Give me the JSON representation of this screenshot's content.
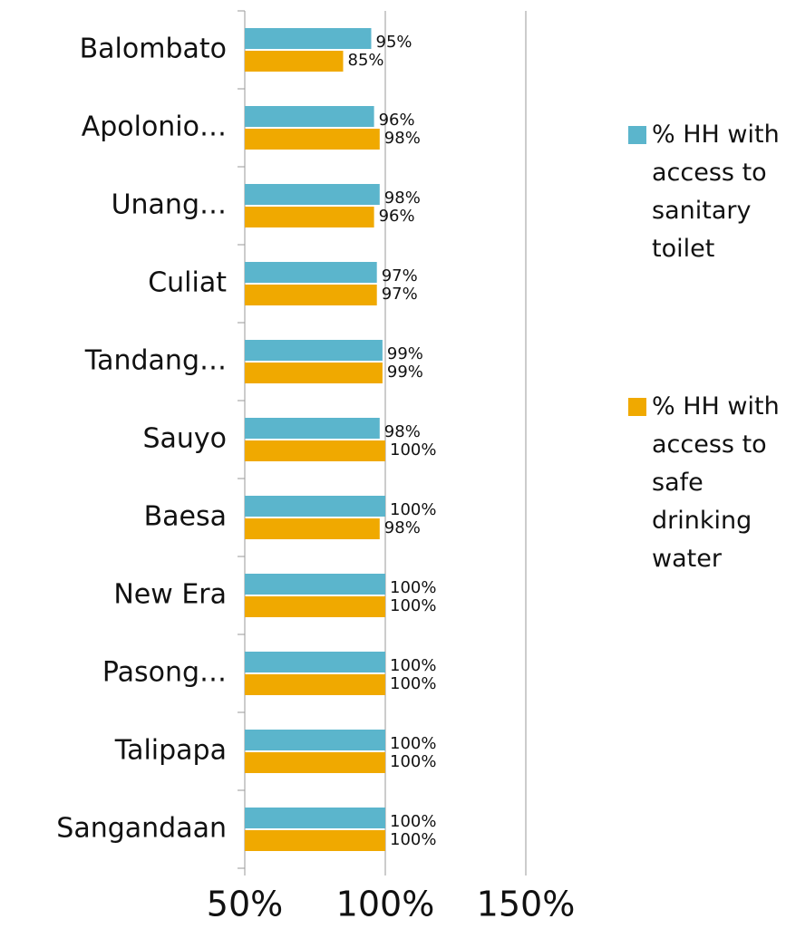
{
  "chart_data": {
    "type": "bar",
    "orientation": "horizontal",
    "categories": [
      "Balombato",
      "Apolonio…",
      "Unang…",
      "Culiat",
      "Tandang…",
      "Sauyo",
      "Baesa",
      "New Era",
      "Pasong…",
      "Talipapa",
      "Sangandaan"
    ],
    "series": [
      {
        "name": "% HH with access to sanitary toilet",
        "color": "#5bb5cc",
        "values": [
          95,
          96,
          98,
          97,
          99,
          98,
          100,
          100,
          100,
          100,
          100
        ],
        "value_labels": [
          "95%",
          "96%",
          "98%",
          "97%",
          "99%",
          "98%",
          "100%",
          "100%",
          "100%",
          "100%",
          "100%"
        ]
      },
      {
        "name": "% HH with access to safe drinking water",
        "color": "#f0a900",
        "values": [
          85,
          98,
          96,
          97,
          99,
          100,
          98,
          100,
          100,
          100,
          100
        ],
        "value_labels": [
          "85%",
          "98%",
          "96%",
          "97%",
          "99%",
          "100%",
          "98%",
          "100%",
          "100%",
          "100%",
          "100%"
        ]
      }
    ],
    "xlim": [
      50,
      150
    ],
    "xticks": [
      {
        "value": 50,
        "label": "50%"
      },
      {
        "value": 100,
        "label": "100%"
      },
      {
        "value": 150,
        "label": "150%"
      }
    ],
    "grid": true,
    "legend": "right"
  }
}
